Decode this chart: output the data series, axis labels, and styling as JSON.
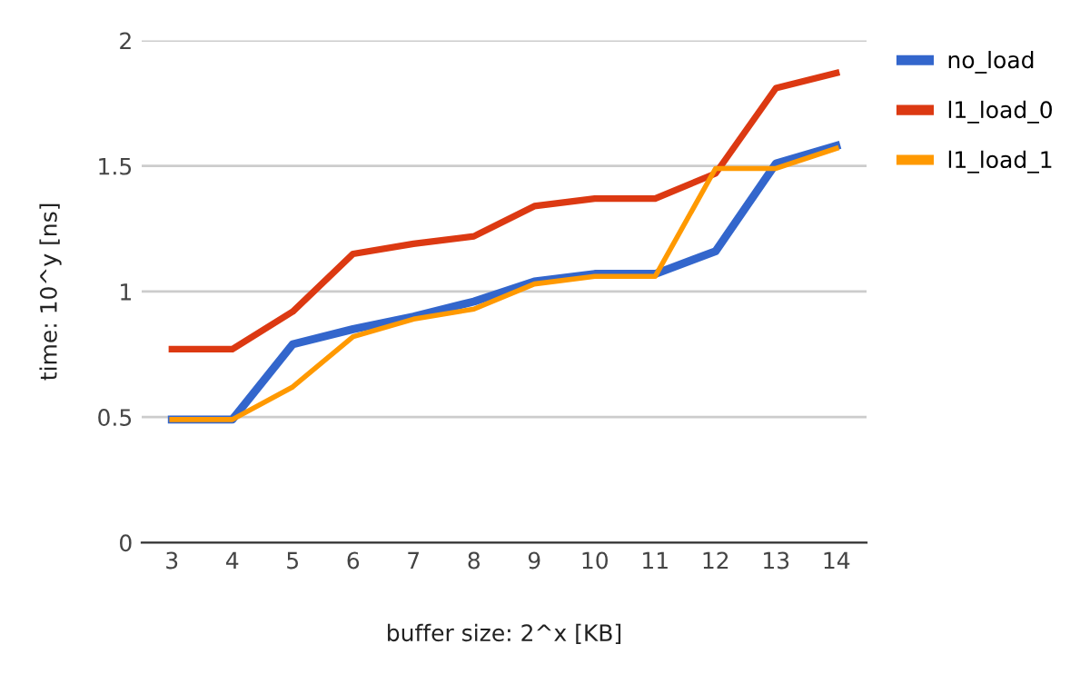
{
  "chart_data": {
    "type": "line",
    "xlabel": "buffer size: 2^x [KB]",
    "ylabel": "time: 10^y [ns]",
    "categories": [
      "3",
      "4",
      "5",
      "6",
      "7",
      "8",
      "9",
      "10",
      "11",
      "12",
      "13",
      "14"
    ],
    "series": [
      {
        "name": "no_load",
        "color": "#3366cc",
        "values": [
          0.49,
          0.49,
          0.79,
          0.85,
          0.9,
          0.96,
          1.04,
          1.07,
          1.07,
          1.16,
          1.51,
          1.58
        ]
      },
      {
        "name": "l1_load_0",
        "color": "#dc3912",
        "values": [
          0.77,
          0.77,
          0.92,
          1.15,
          1.19,
          1.22,
          1.34,
          1.37,
          1.37,
          1.47,
          1.81,
          1.87
        ]
      },
      {
        "name": "l1_load_1",
        "color": "#ff9900",
        "values": [
          0.49,
          0.49,
          0.62,
          0.82,
          0.89,
          0.93,
          1.03,
          1.06,
          1.06,
          1.49,
          1.49,
          1.57
        ]
      }
    ],
    "ylim": [
      0,
      2
    ],
    "yticks": [
      0,
      0.5,
      1,
      1.5,
      2
    ],
    "grid": "y",
    "legend": "top right",
    "marker": "none",
    "line_style": "solid"
  }
}
